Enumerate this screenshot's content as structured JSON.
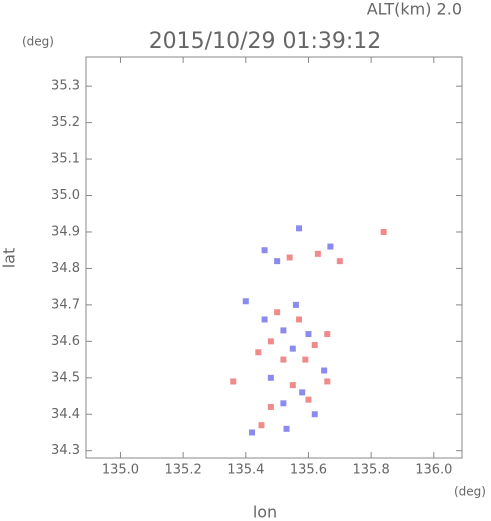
{
  "chart_data": {
    "type": "scatter",
    "title": "2015/10/29 01:39:12",
    "annotation": "ALT(km) 2.0",
    "x_label": "lon",
    "y_label": "lat",
    "x_unit": "(deg)",
    "y_unit": "(deg)",
    "xlim": [
      134.89,
      136.09
    ],
    "ylim": [
      34.28,
      35.38
    ],
    "xticks": [
      {
        "value": 135.0,
        "label": "135.0"
      },
      135.2,
      135.4,
      135.6,
      135.8,
      {
        "value": 136.0,
        "label": "136.0"
      }
    ],
    "yticks": [
      {
        "value": 34.3,
        "label": "34.3"
      },
      34.4,
      34.5,
      34.6,
      34.7,
      34.8,
      34.9,
      {
        "value": 35.0,
        "label": "35.0"
      },
      35.1,
      35.2,
      35.3
    ],
    "series": [
      {
        "color": "#e85a5a",
        "x": [
          135.63,
          135.54,
          135.48,
          135.57,
          135.62,
          135.52,
          135.36,
          135.55,
          135.66,
          135.48,
          135.45,
          135.6,
          135.5,
          135.44,
          135.59,
          135.7,
          135.84,
          135.66
        ],
        "y": [
          34.84,
          34.83,
          34.6,
          34.66,
          34.59,
          34.55,
          34.49,
          34.48,
          34.49,
          34.42,
          34.37,
          34.44,
          34.68,
          34.57,
          34.55,
          34.82,
          34.9,
          34.62
        ]
      },
      {
        "color": "#5a5ae8",
        "x": [
          135.46,
          135.5,
          135.57,
          135.52,
          135.6,
          135.55,
          135.48,
          135.58,
          135.62,
          135.52,
          135.42,
          135.46,
          135.65,
          135.53,
          135.56,
          135.67,
          135.4
        ],
        "y": [
          34.85,
          34.82,
          34.91,
          34.63,
          34.62,
          34.58,
          34.5,
          34.46,
          34.4,
          34.43,
          34.35,
          34.66,
          34.52,
          34.36,
          34.7,
          34.86,
          34.71
        ]
      }
    ]
  }
}
